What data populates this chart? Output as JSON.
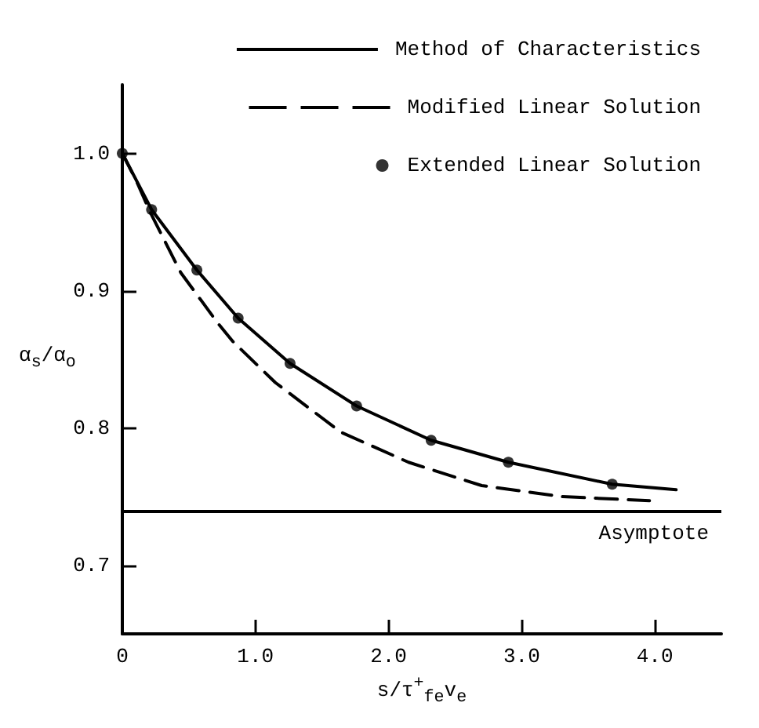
{
  "chart_data": {
    "type": "line",
    "xlabel": "s/τ$^{+}$$_{fe}$v$_{e}$",
    "ylabel": "α$_{s}$/α$_{o}$",
    "xlim": [
      0,
      4.5
    ],
    "ylim": [
      0.65,
      1.05
    ],
    "xticks": [
      0,
      {
        "value": 1,
        "label": "1.0"
      },
      {
        "value": 2,
        "label": "2.0"
      },
      {
        "value": 3,
        "label": "3.0"
      },
      {
        "value": 4,
        "label": "4.0"
      }
    ],
    "yticks": [
      0.7,
      0.8,
      0.9,
      {
        "value": 1,
        "label": "1.0"
      }
    ],
    "grid": false,
    "legend": "top right",
    "series": [
      {
        "name": "Method of Characteristics",
        "type": "line",
        "line_style": "solid",
        "marker": "none",
        "color": "#000000",
        "x": [
          0,
          0.22,
          0.56,
          0.87,
          1.26,
          1.76,
          2.32,
          2.9,
          3.68,
          4.16
        ],
        "values": [
          1.0,
          0.959,
          0.915,
          0.88,
          0.847,
          0.816,
          0.791,
          0.775,
          0.759,
          0.755
        ]
      },
      {
        "name": "Modified Linear Solution",
        "type": "line",
        "line_style": "dashed",
        "marker": "none",
        "color": "#000000",
        "x": [
          0,
          0.11,
          0.21,
          0.44,
          0.72,
          0.83,
          1.15,
          1.64,
          2.15,
          2.7,
          3.3,
          3.96
        ],
        "values": [
          1.0,
          0.979,
          0.957,
          0.913,
          0.876,
          0.863,
          0.833,
          0.797,
          0.775,
          0.758,
          0.75,
          0.747
        ]
      },
      {
        "name": "Extended Linear Solution",
        "type": "scatter",
        "marker": "circle",
        "color": "#000000",
        "x": [
          0,
          0.22,
          0.56,
          0.87,
          1.26,
          1.76,
          2.32,
          2.9,
          3.68
        ],
        "values": [
          1.0,
          0.959,
          0.915,
          0.88,
          0.847,
          0.816,
          0.791,
          0.775,
          0.759
        ]
      }
    ],
    "ref_lines": [
      {
        "axis": "y",
        "value": 0.74,
        "label": "Asymptote",
        "color": "#000000",
        "line_style": "solid"
      }
    ]
  }
}
